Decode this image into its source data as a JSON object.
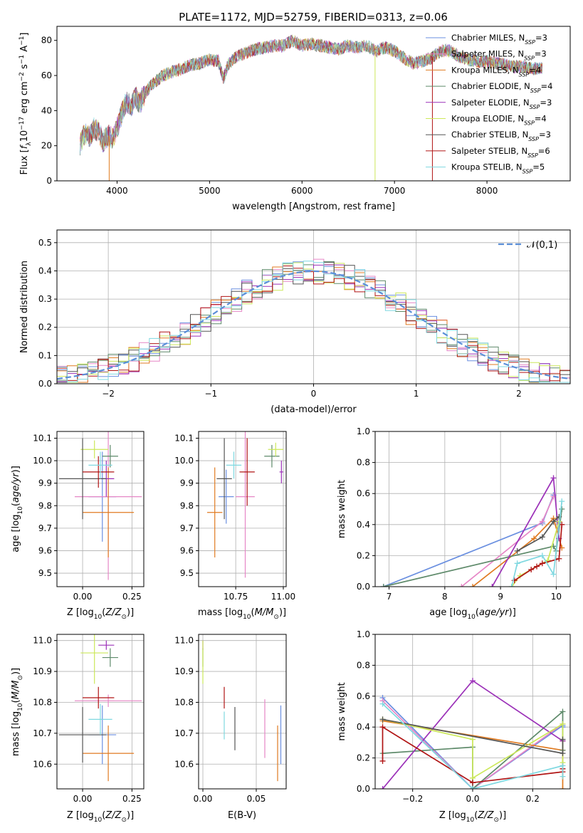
{
  "title": "PLATE=1172, MJD=52759, FIBERID=0313, z=0.06",
  "colors": {
    "chabrier_miles": "#6a8fe0",
    "salpeter_miles": "#e686c6",
    "kroupa_miles": "#e07a20",
    "chabrier_elodie": "#5e8a6a",
    "salpeter_elodie": "#9b30b8",
    "kroupa_elodie": "#cce85a",
    "chabrier_stelib": "#555555",
    "salpeter_stelib": "#b01414",
    "kroupa_stelib": "#7fd8e0",
    "normal_curve": "#5b8fd8"
  },
  "series_names": [
    "Chabrier MILES, N$_{SSP}$=3",
    "Salpeter MILES, N$_{SSP}$=3",
    "Kroupa MILES, N$_{SSP}$=4",
    "Chabrier ELODIE, N$_{SSP}$=4",
    "Salpeter ELODIE, N$_{SSP}$=3",
    "Kroupa ELODIE, N$_{SSP}$=4",
    "Chabrier STELIB, N$_{SSP}$=3",
    "Salpeter STELIB, N$_{SSP}$=6",
    "Kroupa STELIB, N$_{SSP}$=5"
  ],
  "legend": [
    {
      "pre": "Chabrier MILES, N",
      "sub": "SSP",
      "post": "=3"
    },
    {
      "pre": "Salpeter MILES, N",
      "sub": "SSP",
      "post": "=3"
    },
    {
      "pre": "Kroupa MILES, N",
      "sub": "SSP",
      "post": "=4"
    },
    {
      "pre": "Chabrier ELODIE, N",
      "sub": "SSP",
      "post": "=4"
    },
    {
      "pre": "Salpeter ELODIE, N",
      "sub": "SSP",
      "post": "=3"
    },
    {
      "pre": "Kroupa ELODIE, N",
      "sub": "SSP",
      "post": "=4"
    },
    {
      "pre": "Chabrier STELIB, N",
      "sub": "SSP",
      "post": "=3"
    },
    {
      "pre": "Salpeter STELIB, N",
      "sub": "SSP",
      "post": "=6"
    },
    {
      "pre": "Kroupa STELIB, N",
      "sub": "SSP",
      "post": "=5"
    }
  ],
  "chart_data": [
    {
      "type": "line",
      "panel": "spectrum",
      "title": "PLATE=1172, MJD=52759, FIBERID=0313, z=0.06",
      "xlabel": "wavelength [Angstrom, rest frame]",
      "ylabel": "Flux [f_λ 10^-17 erg cm^-2 s^-1 A^-1]",
      "xlim": [
        3350,
        8900
      ],
      "ylim": [
        0,
        88
      ],
      "xticks": [
        4000,
        5000,
        6000,
        7000,
        8000
      ],
      "yticks": [
        0,
        20,
        40,
        60,
        80
      ],
      "legend_position": "upper right",
      "x": [
        3600,
        3650,
        3700,
        3750,
        3800,
        3850,
        3900,
        3950,
        4000,
        4050,
        4100,
        4150,
        4200,
        4250,
        4300,
        4400,
        4500,
        4600,
        4700,
        4800,
        4900,
        5000,
        5100,
        5150,
        5200,
        5300,
        5400,
        5500,
        5600,
        5700,
        5800,
        5900,
        6000,
        6100,
        6200,
        6300,
        6400,
        6500,
        6600,
        6700,
        6800,
        6900,
        7000,
        7100,
        7200,
        7300,
        7400,
        7500,
        7600,
        7700,
        7800,
        7900,
        8000,
        8100,
        8200,
        8300,
        8400,
        8500,
        8600
      ],
      "y_model": [
        21,
        27,
        25,
        30,
        28,
        22,
        26,
        24,
        30,
        38,
        45,
        42,
        48,
        44,
        50,
        56,
        60,
        62,
        64,
        66,
        67,
        69,
        68,
        58,
        66,
        71,
        73,
        75,
        76,
        77,
        77,
        80,
        77,
        78,
        77,
        76,
        75,
        77,
        76,
        77,
        74,
        76,
        74,
        70,
        67,
        68,
        70,
        74,
        74,
        71,
        69,
        68,
        68,
        67,
        66,
        65,
        65,
        64,
        64
      ],
      "spikes": [
        {
          "x": 3915,
          "y": 0
        },
        {
          "x": 6790,
          "y": 0
        },
        {
          "x": 7410,
          "y": 0
        }
      ]
    },
    {
      "type": "bar",
      "panel": "residual_histogram",
      "xlabel": "(data-model)/error",
      "ylabel": "Normed distribution",
      "xlim": [
        -2.5,
        2.5
      ],
      "ylim": [
        0,
        0.545
      ],
      "xticks": [
        -2,
        -1,
        0,
        1,
        2
      ],
      "yticks": [
        0,
        0.1,
        0.2,
        0.3,
        0.4,
        0.5
      ],
      "grid": true,
      "bin_width": 0.1,
      "bin_start": -2.5,
      "curve": {
        "name": "𝒩(0,1)",
        "mean": 0,
        "sigma": 1,
        "style": "dashed"
      },
      "legend_position": "upper right"
    },
    {
      "type": "scatter",
      "panel": "age_vs_Z",
      "xlabel": "Z [log10(Z/Z☉)]",
      "ylabel": "age [log10(age/yr)]",
      "xlim": [
        -0.13,
        0.31
      ],
      "ylim": [
        9.44,
        10.13
      ],
      "xticks": [
        0.0,
        0.25
      ],
      "yticks": [
        9.5,
        9.6,
        9.7,
        9.8,
        9.9,
        10.0,
        10.1
      ],
      "grid": true,
      "points": [
        {
          "series": 0,
          "x": 0.1,
          "xerr": 0.07,
          "y": 9.84,
          "yerr": 0.2
        },
        {
          "series": 1,
          "x": 0.13,
          "xerr": 0.17,
          "y": 9.84,
          "yerr": 0.37
        },
        {
          "series": 2,
          "x": 0.13,
          "xerr": 0.13,
          "y": 9.77,
          "yerr": 0.2
        },
        {
          "series": 3,
          "x": 0.14,
          "xerr": 0.04,
          "y": 10.02,
          "yerr": 0.05
        },
        {
          "series": 4,
          "x": 0.12,
          "xerr": 0.04,
          "y": 9.92,
          "yerr": 0.08
        },
        {
          "series": 5,
          "x": 0.06,
          "xerr": 0.07,
          "y": 10.05,
          "yerr": 0.04
        },
        {
          "series": 6,
          "x": 0.0,
          "xerr": 0.12,
          "y": 9.92,
          "yerr": 0.18
        },
        {
          "series": 7,
          "x": 0.08,
          "xerr": 0.08,
          "y": 9.95,
          "yerr": 0.07
        },
        {
          "series": 8,
          "x": 0.09,
          "xerr": 0.06,
          "y": 9.98,
          "yerr": 0.06
        }
      ]
    },
    {
      "type": "scatter",
      "panel": "age_vs_mass",
      "xlabel": "mass [log10(M/M☉)]",
      "ylabel": "",
      "xlim": [
        10.555,
        11.015
      ],
      "ylim": [
        9.44,
        10.13
      ],
      "xticks": [
        10.75,
        11.0
      ],
      "yticks": [
        9.5,
        9.6,
        9.7,
        9.8,
        9.9,
        10.0,
        10.1
      ],
      "grid": true,
      "points": [
        {
          "series": 0,
          "x": 10.7,
          "xerr": 0.04,
          "y": 9.84,
          "yerr": 0.12
        },
        {
          "series": 1,
          "x": 10.8,
          "xerr": 0.05,
          "y": 9.84,
          "yerr": 0.36
        },
        {
          "series": 2,
          "x": 10.64,
          "xerr": 0.04,
          "y": 9.77,
          "yerr": 0.2
        },
        {
          "series": 3,
          "x": 10.94,
          "xerr": 0.04,
          "y": 10.02,
          "yerr": 0.05
        },
        {
          "series": 4,
          "x": 10.99,
          "xerr": 0.01,
          "y": 9.95,
          "yerr": 0.05
        },
        {
          "series": 5,
          "x": 10.96,
          "xerr": 0.04,
          "y": 10.05,
          "yerr": 0.03
        },
        {
          "series": 6,
          "x": 10.69,
          "xerr": 0.04,
          "y": 9.92,
          "yerr": 0.18
        },
        {
          "series": 7,
          "x": 10.81,
          "xerr": 0.04,
          "y": 9.95,
          "yerr": 0.15
        },
        {
          "series": 8,
          "x": 10.74,
          "xerr": 0.04,
          "y": 9.98,
          "yerr": 0.06
        }
      ]
    },
    {
      "type": "line",
      "panel": "mass_weight_vs_age",
      "xlabel": "age [log10(age/yr)]",
      "ylabel": "mass weight",
      "xlim": [
        6.75,
        10.25
      ],
      "ylim": [
        0,
        1.0
      ],
      "xticks": [
        7,
        8,
        9,
        10
      ],
      "yticks": [
        0.0,
        0.2,
        0.4,
        0.6,
        0.8,
        1.0
      ],
      "grid": true,
      "lines": [
        {
          "series": 0,
          "x": [
            6.9,
            9.75,
            9.95
          ],
          "y": [
            0.0,
            0.41,
            0.59
          ]
        },
        {
          "series": 1,
          "x": [
            8.3,
            9.75,
            9.95
          ],
          "y": [
            0.0,
            0.42,
            0.58
          ]
        },
        {
          "series": 2,
          "x": [
            8.5,
            9.6,
            9.95,
            10.1
          ],
          "y": [
            0.0,
            0.31,
            0.44,
            0.25
          ]
        },
        {
          "series": 3,
          "x": [
            6.9,
            9.95,
            10.0,
            10.1
          ],
          "y": [
            0.0,
            0.26,
            0.23,
            0.5
          ]
        },
        {
          "series": 4,
          "x": [
            8.85,
            9.95,
            10.05
          ],
          "y": [
            0.0,
            0.7,
            0.31
          ]
        },
        {
          "series": 5,
          "x": [
            9.2,
            9.35,
            9.85,
            10.05
          ],
          "y": [
            0.0,
            0.07,
            0.17,
            0.42
          ]
        },
        {
          "series": 6,
          "x": [
            9.3,
            9.75,
            9.95,
            10.05
          ],
          "y": [
            0.23,
            0.32,
            0.42,
            0.45
          ]
        },
        {
          "series": 7,
          "x": [
            9.25,
            9.55,
            9.65,
            9.75,
            10.05,
            10.1
          ],
          "y": [
            0.04,
            0.11,
            0.13,
            0.15,
            0.18,
            0.4
          ]
        },
        {
          "series": 8,
          "x": [
            9.2,
            9.3,
            9.75,
            9.95,
            10.1
          ],
          "y": [
            0.0,
            0.15,
            0.2,
            0.08,
            0.55
          ]
        }
      ]
    },
    {
      "type": "scatter",
      "panel": "mass_vs_Z",
      "xlabel": "Z [log10(Z/Z☉)]",
      "ylabel": "mass [log10(M/M☉)]",
      "xlim": [
        -0.13,
        0.31
      ],
      "ylim": [
        10.52,
        11.02
      ],
      "xticks": [
        0.0,
        0.25
      ],
      "yticks": [
        10.6,
        10.7,
        10.8,
        10.9,
        11.0
      ],
      "grid": true,
      "points": [
        {
          "series": 0,
          "x": 0.1,
          "xerr": 0.07,
          "y": 10.695,
          "yerr": 0.095
        },
        {
          "series": 1,
          "x": 0.13,
          "xerr": 0.17,
          "y": 10.805,
          "yerr": 0.02
        },
        {
          "series": 2,
          "x": 0.13,
          "xerr": 0.13,
          "y": 10.635,
          "yerr": 0.09
        },
        {
          "series": 3,
          "x": 0.14,
          "xerr": 0.04,
          "y": 10.945,
          "yerr": 0.03
        },
        {
          "series": 4,
          "x": 0.12,
          "xerr": 0.04,
          "y": 10.985,
          "yerr": 0.015
        },
        {
          "series": 5,
          "x": 0.06,
          "xerr": 0.07,
          "y": 10.96,
          "yerr": 0.1
        },
        {
          "series": 6,
          "x": 0.0,
          "xerr": 0.12,
          "y": 10.695,
          "yerr": 0.09
        },
        {
          "series": 7,
          "x": 0.08,
          "xerr": 0.08,
          "y": 10.815,
          "yerr": 0.035
        },
        {
          "series": 8,
          "x": 0.09,
          "xerr": 0.06,
          "y": 10.745,
          "yerr": 0.05
        }
      ]
    },
    {
      "type": "scatter",
      "panel": "mass_vs_ebv",
      "xlabel": "E(B-V)",
      "ylabel": "",
      "xlim": [
        -0.004,
        0.078
      ],
      "ylim": [
        10.52,
        11.02
      ],
      "xticks": [
        0.0,
        0.05
      ],
      "yticks": [
        10.6,
        10.7,
        10.8,
        10.9,
        11.0
      ],
      "grid": true,
      "points": [
        {
          "series": 0,
          "x": 0.073,
          "y": 10.695,
          "yerr": 0.095
        },
        {
          "series": 1,
          "x": 0.058,
          "y": 10.715,
          "yerr": 0.095
        },
        {
          "series": 2,
          "x": 0.07,
          "y": 10.635,
          "yerr": 0.09
        },
        {
          "series": 3,
          "x": 0.0,
          "y": 10.945,
          "yerr": 0.03
        },
        {
          "series": 4,
          "x": 0.0,
          "y": 10.985,
          "yerr": 0.015
        },
        {
          "series": 5,
          "x": 0.0,
          "y": 10.93,
          "yerr": 0.07
        },
        {
          "series": 6,
          "x": 0.03,
          "y": 10.715,
          "yerr": 0.07
        },
        {
          "series": 7,
          "x": 0.02,
          "y": 10.815,
          "yerr": 0.035
        },
        {
          "series": 8,
          "x": 0.02,
          "y": 10.725,
          "yerr": 0.045
        }
      ]
    },
    {
      "type": "line",
      "panel": "mass_weight_vs_Z",
      "xlabel": "Z [log10(Z/Z☉)]",
      "ylabel": "mass weight",
      "xlim": [
        -0.325,
        0.325
      ],
      "ylim": [
        0,
        1.0
      ],
      "xticks": [
        -0.2,
        0.0,
        0.2
      ],
      "yticks": [
        0.0,
        0.2,
        0.4,
        0.6,
        0.8,
        1.0
      ],
      "grid": true,
      "lines": [
        {
          "series": 0,
          "x": [
            -0.3,
            0.0,
            0.3,
            0.3
          ],
          "y": [
            0.59,
            0.0,
            0.41,
            0.4
          ]
        },
        {
          "series": 1,
          "x": [
            -0.3,
            0.0,
            0.3
          ],
          "y": [
            0.57,
            0.0,
            0.42
          ]
        },
        {
          "series": 2,
          "x": [
            -0.3,
            0.3,
            0.3,
            0.3
          ],
          "y": [
            0.44,
            0.25,
            0.31,
            0.0
          ]
        },
        {
          "series": 3,
          "x": [
            -0.3,
            0.0,
            0.0,
            0.3,
            0.3
          ],
          "y": [
            0.23,
            0.27,
            0.0,
            0.5,
            0.25
          ]
        },
        {
          "series": 4,
          "x": [
            -0.3,
            0.0,
            0.3
          ],
          "y": [
            0.0,
            0.7,
            0.31
          ]
        },
        {
          "series": 5,
          "x": [
            -0.3,
            0.0,
            0.0,
            0.3,
            0.3
          ],
          "y": [
            0.45,
            0.32,
            0.07,
            0.42,
            0.17
          ]
        },
        {
          "series": 6,
          "x": [
            -0.3,
            0.3,
            0.3
          ],
          "y": [
            0.45,
            0.23,
            0.32
          ]
        },
        {
          "series": 7,
          "x": [
            -0.3,
            -0.3,
            0.0,
            0.3,
            0.3
          ],
          "y": [
            0.18,
            0.4,
            0.04,
            0.11,
            0.13
          ]
        },
        {
          "series": 8,
          "x": [
            -0.3,
            0.0,
            0.3,
            0.3
          ],
          "y": [
            0.55,
            0.0,
            0.15,
            0.08
          ]
        }
      ]
    }
  ]
}
